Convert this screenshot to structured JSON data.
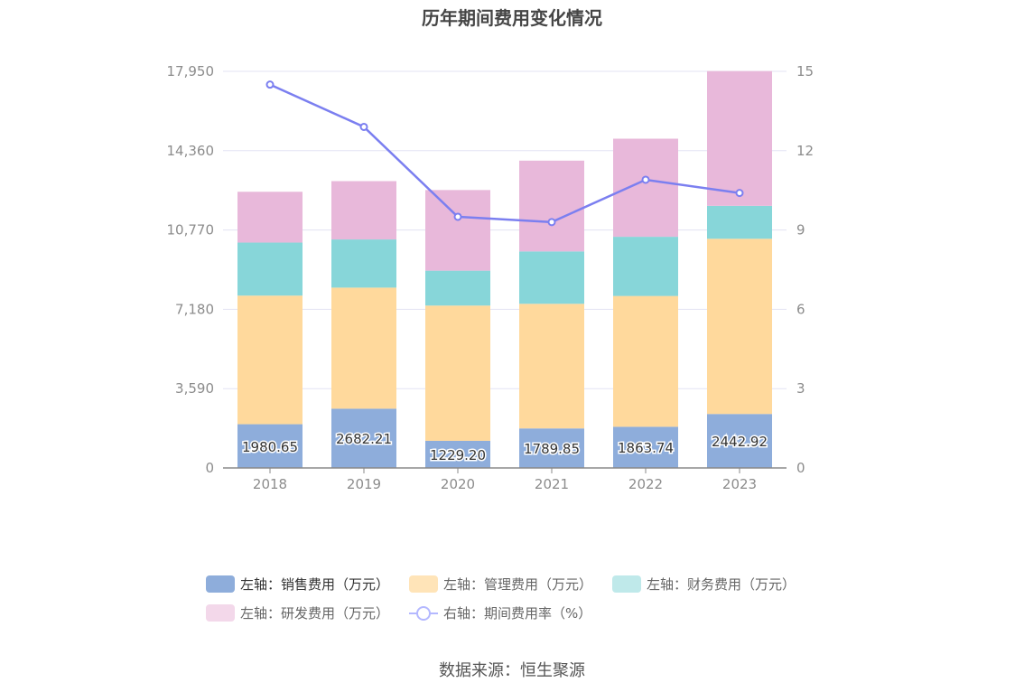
{
  "chart_data": {
    "type": "bar",
    "title": "历年期间费用变化情况",
    "categories": [
      "2018",
      "2019",
      "2020",
      "2021",
      "2022",
      "2023"
    ],
    "left_axis": {
      "ylim": [
        0,
        17950
      ],
      "ticks": [
        "0",
        "3,590",
        "7,180",
        "10,770",
        "14,360",
        "17,950"
      ],
      "tick_values": [
        0,
        3590,
        7180,
        10770,
        14360,
        17950
      ]
    },
    "right_axis": {
      "ylim": [
        0,
        15
      ],
      "ticks": [
        "0",
        "3",
        "6",
        "9",
        "12",
        "15"
      ],
      "tick_values": [
        0,
        3,
        6,
        9,
        12,
        15
      ]
    },
    "series": [
      {
        "name": "左轴：销售费用（万元）",
        "type": "bar",
        "color": "#8eaddb",
        "values": [
          1980.65,
          2682.21,
          1229.2,
          1789.85,
          1863.74,
          2442.92
        ],
        "labels": [
          "1980.65",
          "2682.21",
          "1229.20",
          "1789.85",
          "1863.74",
          "2442.92"
        ]
      },
      {
        "name": "左轴：管理费用（万元）",
        "type": "bar",
        "color": "#ffd99c",
        "values": [
          5820,
          5480,
          6120,
          5640,
          5920,
          7930
        ]
      },
      {
        "name": "左轴：财务费用（万元）",
        "type": "bar",
        "color": "#87d6d9",
        "values": [
          2400,
          2180,
          1580,
          2370,
          2680,
          1490
        ]
      },
      {
        "name": "左轴：研发费用（万元）",
        "type": "bar",
        "color": "#e8b8da",
        "values": [
          2300,
          2640,
          3650,
          4110,
          4440,
          6100
        ]
      },
      {
        "name": "右轴：期间费用率（%）",
        "type": "line",
        "color": "#7b7ff0",
        "axis": "right",
        "values": [
          14.5,
          12.9,
          9.5,
          9.3,
          10.9,
          10.4
        ]
      }
    ]
  },
  "legend": [
    {
      "label": "左轴：销售费用（万元）",
      "color": "#8eaddb"
    },
    {
      "label": "左轴：管理费用（万元）",
      "color": "#ffe4b8"
    },
    {
      "label": "左轴：财务费用（万元）",
      "color": "#bfe9ea"
    },
    {
      "label": "左轴：研发费用（万元）",
      "color": "#f3d8ea"
    },
    {
      "label": "右轴：期间费用率（%）",
      "color": "#b4b8ff"
    }
  ],
  "source": "数据来源：恒生聚源"
}
